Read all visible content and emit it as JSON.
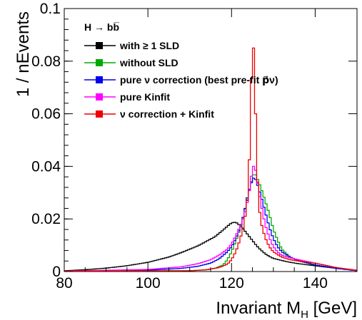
{
  "chart_data": {
    "type": "line",
    "title": "",
    "xlabel": "Invariant M_H [GeV]",
    "xlabel_main": "Invariant M",
    "xlabel_sub": "H",
    "xlabel_unit": " [GeV]",
    "ylabel": "1 / nEvents",
    "xlim": [
      80,
      150
    ],
    "ylim": [
      0,
      0.1
    ],
    "xticks": [
      80,
      100,
      120,
      140
    ],
    "yticks": [
      0,
      0.02,
      0.04,
      0.06,
      0.08,
      0.1
    ],
    "ytick_labels": [
      "0",
      "0.02",
      "0.04",
      "0.06",
      "0.08",
      "0.1"
    ],
    "grid": false,
    "legend_placement": "top-left",
    "legend_title": "H → bb̅",
    "series": [
      {
        "name": "with ≥ 1 SLD",
        "color": "#000000",
        "points": [
          [
            80,
            0.0003
          ],
          [
            85,
            0.0007
          ],
          [
            90,
            0.0013
          ],
          [
            95,
            0.0022
          ],
          [
            100,
            0.0035
          ],
          [
            105,
            0.0055
          ],
          [
            108,
            0.0072
          ],
          [
            110,
            0.0085
          ],
          [
            112,
            0.0098
          ],
          [
            114,
            0.0115
          ],
          [
            116,
            0.0132
          ],
          [
            117,
            0.0145
          ],
          [
            118,
            0.0158
          ],
          [
            119,
            0.0172
          ],
          [
            120,
            0.0185
          ],
          [
            121,
            0.0188
          ],
          [
            122,
            0.0175
          ],
          [
            123,
            0.0158
          ],
          [
            124,
            0.0138
          ],
          [
            125,
            0.0118
          ],
          [
            126,
            0.0098
          ],
          [
            127,
            0.0082
          ],
          [
            128,
            0.0068
          ],
          [
            129,
            0.0058
          ],
          [
            130,
            0.005
          ],
          [
            132,
            0.0042
          ],
          [
            134,
            0.0035
          ],
          [
            136,
            0.003
          ],
          [
            140,
            0.0022
          ],
          [
            145,
            0.0012
          ],
          [
            150,
            0.0005
          ]
        ]
      },
      {
        "name": "without SLD",
        "color": "#00aa00",
        "points": [
          [
            80,
            0.0002
          ],
          [
            110,
            0.0003
          ],
          [
            114,
            0.0006
          ],
          [
            116,
            0.0012
          ],
          [
            118,
            0.0025
          ],
          [
            119,
            0.0045
          ],
          [
            120,
            0.0075
          ],
          [
            121,
            0.0115
          ],
          [
            122,
            0.016
          ],
          [
            123,
            0.022
          ],
          [
            124,
            0.029
          ],
          [
            125,
            0.036
          ],
          [
            125.5,
            0.0375
          ],
          [
            126,
            0.036
          ],
          [
            127,
            0.032
          ],
          [
            128,
            0.027
          ],
          [
            129,
            0.022
          ],
          [
            130,
            0.016
          ],
          [
            131,
            0.012
          ],
          [
            132,
            0.0085
          ],
          [
            134,
            0.0055
          ],
          [
            136,
            0.004
          ],
          [
            140,
            0.0025
          ],
          [
            145,
            0.0012
          ],
          [
            150,
            0.0003
          ]
        ]
      },
      {
        "name": "pure ν correction (best pre-fit p⃗ν)",
        "color": "#0000ee",
        "points": [
          [
            80,
            0.0002
          ],
          [
            100,
            0.0005
          ],
          [
            108,
            0.0012
          ],
          [
            112,
            0.002
          ],
          [
            115,
            0.0032
          ],
          [
            117,
            0.0048
          ],
          [
            119,
            0.0075
          ],
          [
            120,
            0.0095
          ],
          [
            121,
            0.0125
          ],
          [
            122,
            0.0165
          ],
          [
            123,
            0.022
          ],
          [
            124,
            0.03
          ],
          [
            125,
            0.035
          ],
          [
            125.5,
            0.036
          ],
          [
            126,
            0.034
          ],
          [
            127,
            0.029
          ],
          [
            128,
            0.023
          ],
          [
            129,
            0.017
          ],
          [
            130,
            0.0125
          ],
          [
            131,
            0.0095
          ],
          [
            132,
            0.0075
          ],
          [
            134,
            0.0055
          ],
          [
            136,
            0.0042
          ],
          [
            140,
            0.0025
          ],
          [
            145,
            0.0012
          ],
          [
            150,
            0.0003
          ]
        ]
      },
      {
        "name": "pure Kinfit",
        "color": "#ff00ff",
        "points": [
          [
            80,
            0.0002
          ],
          [
            100,
            0.0008
          ],
          [
            108,
            0.0018
          ],
          [
            112,
            0.003
          ],
          [
            115,
            0.0045
          ],
          [
            117,
            0.0062
          ],
          [
            119,
            0.0085
          ],
          [
            120,
            0.0105
          ],
          [
            121,
            0.0135
          ],
          [
            122,
            0.017
          ],
          [
            123,
            0.021
          ],
          [
            124,
            0.028
          ],
          [
            125,
            0.039
          ],
          [
            125.5,
            0.041
          ],
          [
            126,
            0.036
          ],
          [
            127,
            0.026
          ],
          [
            128,
            0.018
          ],
          [
            129,
            0.013
          ],
          [
            130,
            0.0095
          ],
          [
            131,
            0.0075
          ],
          [
            132,
            0.0062
          ],
          [
            134,
            0.0052
          ],
          [
            136,
            0.0045
          ],
          [
            140,
            0.0032
          ],
          [
            145,
            0.0015
          ],
          [
            150,
            0.0004
          ]
        ]
      },
      {
        "name": "ν correction + Kinfit",
        "color": "#ee0000",
        "points": [
          [
            80,
            0.0002
          ],
          [
            110,
            0.0003
          ],
          [
            114,
            0.0007
          ],
          [
            117,
            0.0015
          ],
          [
            119,
            0.0028
          ],
          [
            120,
            0.0045
          ],
          [
            121,
            0.0075
          ],
          [
            122,
            0.012
          ],
          [
            123,
            0.018
          ],
          [
            124,
            0.03
          ],
          [
            124.5,
            0.055
          ],
          [
            125,
            0.092
          ],
          [
            125.5,
            0.078
          ],
          [
            126,
            0.042
          ],
          [
            126.5,
            0.026
          ],
          [
            127,
            0.019
          ],
          [
            128,
            0.013
          ],
          [
            129,
            0.0095
          ],
          [
            130,
            0.0075
          ],
          [
            132,
            0.0055
          ],
          [
            134,
            0.0045
          ],
          [
            136,
            0.004
          ],
          [
            140,
            0.0032
          ],
          [
            145,
            0.0015
          ],
          [
            150,
            0.0005
          ]
        ]
      }
    ]
  }
}
